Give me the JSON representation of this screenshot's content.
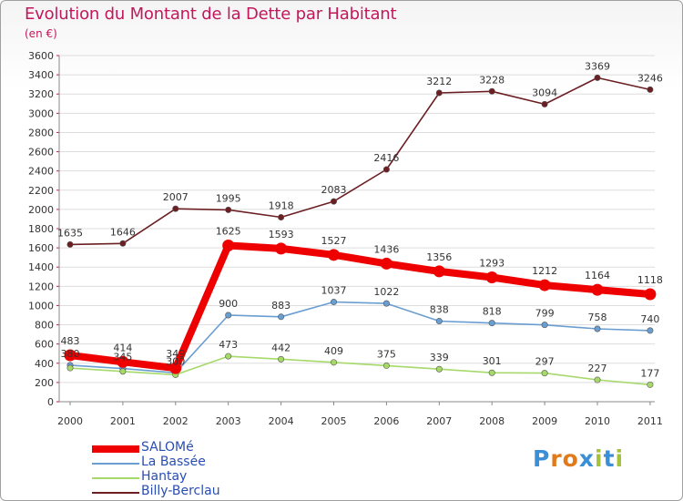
{
  "title": "Evolution du Montant de la Dette par Habitant",
  "unit_label": "(en €)",
  "logo": {
    "text": "Proxiti",
    "letters": [
      "P",
      "r",
      "o",
      "x",
      "i",
      "t",
      "i"
    ],
    "letter_colors": [
      "#3a8fd6",
      "#e07a1a",
      "#e07a1a",
      "#3a8fd6",
      "#a6c23a",
      "#3a8fd6",
      "#a6c23a"
    ]
  },
  "chart_data": {
    "type": "line",
    "title": "Evolution du Montant de la Dette par Habitant",
    "subtitle": "(en €)",
    "xlabel": "",
    "ylabel": "",
    "x": [
      "2000",
      "2001",
      "2002",
      "2003",
      "2004",
      "2005",
      "2006",
      "2007",
      "2008",
      "2009",
      "2010",
      "2011"
    ],
    "ylim": [
      0,
      3600
    ],
    "yticks": [
      0,
      200,
      400,
      600,
      800,
      1000,
      1200,
      1400,
      1600,
      1800,
      2000,
      2200,
      2400,
      2600,
      2800,
      3000,
      3200,
      3400,
      3600
    ],
    "grid": true,
    "legend_position": "bottom-left",
    "series": [
      {
        "name": "Billy-Berclau",
        "color": "#6b1f23",
        "values": [
          1635,
          1646,
          2007,
          1995,
          1918,
          2083,
          2416,
          3212,
          3228,
          3094,
          3369,
          3246
        ]
      },
      {
        "name": "La Bassée",
        "color": "#6a9ed1",
        "values": [
          380,
          345,
          300,
          900,
          883,
          1037,
          1022,
          838,
          818,
          799,
          758,
          740
        ]
      },
      {
        "name": "Hantay",
        "color": "#a6d96a",
        "values": [
          350,
          315,
          280,
          473,
          442,
          409,
          375,
          339,
          301,
          297,
          227,
          177
        ]
      },
      {
        "name": "SALOMé",
        "color": "#ee0000",
        "values": [
          483,
          414,
          349,
          1625,
          1593,
          1527,
          1436,
          1356,
          1293,
          1212,
          1164,
          1118
        ]
      }
    ],
    "data_labels": {
      "Billy-Berclau": [
        "1635",
        "1646",
        "2007",
        "1995",
        "1918",
        "2083",
        "2416",
        "3212",
        "3228",
        "3094",
        "3369",
        "3246"
      ],
      "SALOMé": [
        "483",
        "414",
        "349",
        "1625",
        "1593",
        "1527",
        "1436",
        "1356",
        "1293",
        "1212",
        "1164",
        "1118"
      ],
      "La Bassée": [
        "380",
        "345",
        "300",
        "900",
        "883",
        "1037",
        "1022",
        "838",
        "818",
        "799",
        "758",
        "740"
      ],
      "Hantay": [
        "",
        "",
        "",
        "473",
        "442",
        "409",
        "375",
        "339",
        "301",
        "297",
        "227",
        "177"
      ]
    },
    "legend_order": [
      "SALOMé",
      "La Bassée",
      "Hantay",
      "Billy-Berclau"
    ]
  }
}
